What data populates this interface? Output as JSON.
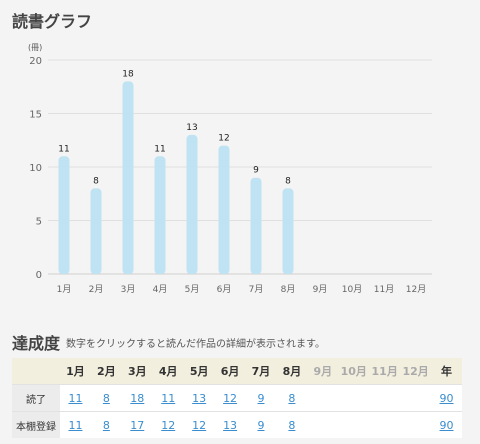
{
  "graph_title": "読書グラフ",
  "chart_data": {
    "type": "bar",
    "unit_label": "(冊)",
    "categories": [
      "1月",
      "2月",
      "3月",
      "4月",
      "5月",
      "6月",
      "7月",
      "8月",
      "9月",
      "10月",
      "11月",
      "12月"
    ],
    "values": [
      11,
      8,
      18,
      11,
      13,
      12,
      9,
      8,
      null,
      null,
      null,
      null
    ],
    "data_labels": [
      "11",
      "8",
      "18",
      "11",
      "13",
      "12",
      "9",
      "8",
      "",
      "",
      "",
      ""
    ],
    "yticks": [
      0,
      5,
      10,
      15,
      20
    ],
    "ylim": [
      0,
      20
    ],
    "grid": true,
    "bar_color": "#bfe3f2"
  },
  "achievement": {
    "title": "達成度",
    "description": "数字をクリックすると読んだ作品の詳細が表示されます。",
    "months": [
      "1月",
      "2月",
      "3月",
      "4月",
      "5月",
      "6月",
      "7月",
      "8月",
      "9月",
      "10月",
      "11月",
      "12月"
    ],
    "active_months": 8,
    "year_label": "年",
    "rows": [
      {
        "label": "読了",
        "values": [
          "11",
          "8",
          "18",
          "11",
          "13",
          "12",
          "9",
          "8",
          "",
          "",
          "",
          ""
        ],
        "year": "90"
      },
      {
        "label": "本棚登録",
        "values": [
          "11",
          "8",
          "17",
          "12",
          "12",
          "13",
          "9",
          "8",
          "",
          "",
          "",
          ""
        ],
        "year": "90"
      }
    ],
    "link_color": "#3a8dcf"
  }
}
